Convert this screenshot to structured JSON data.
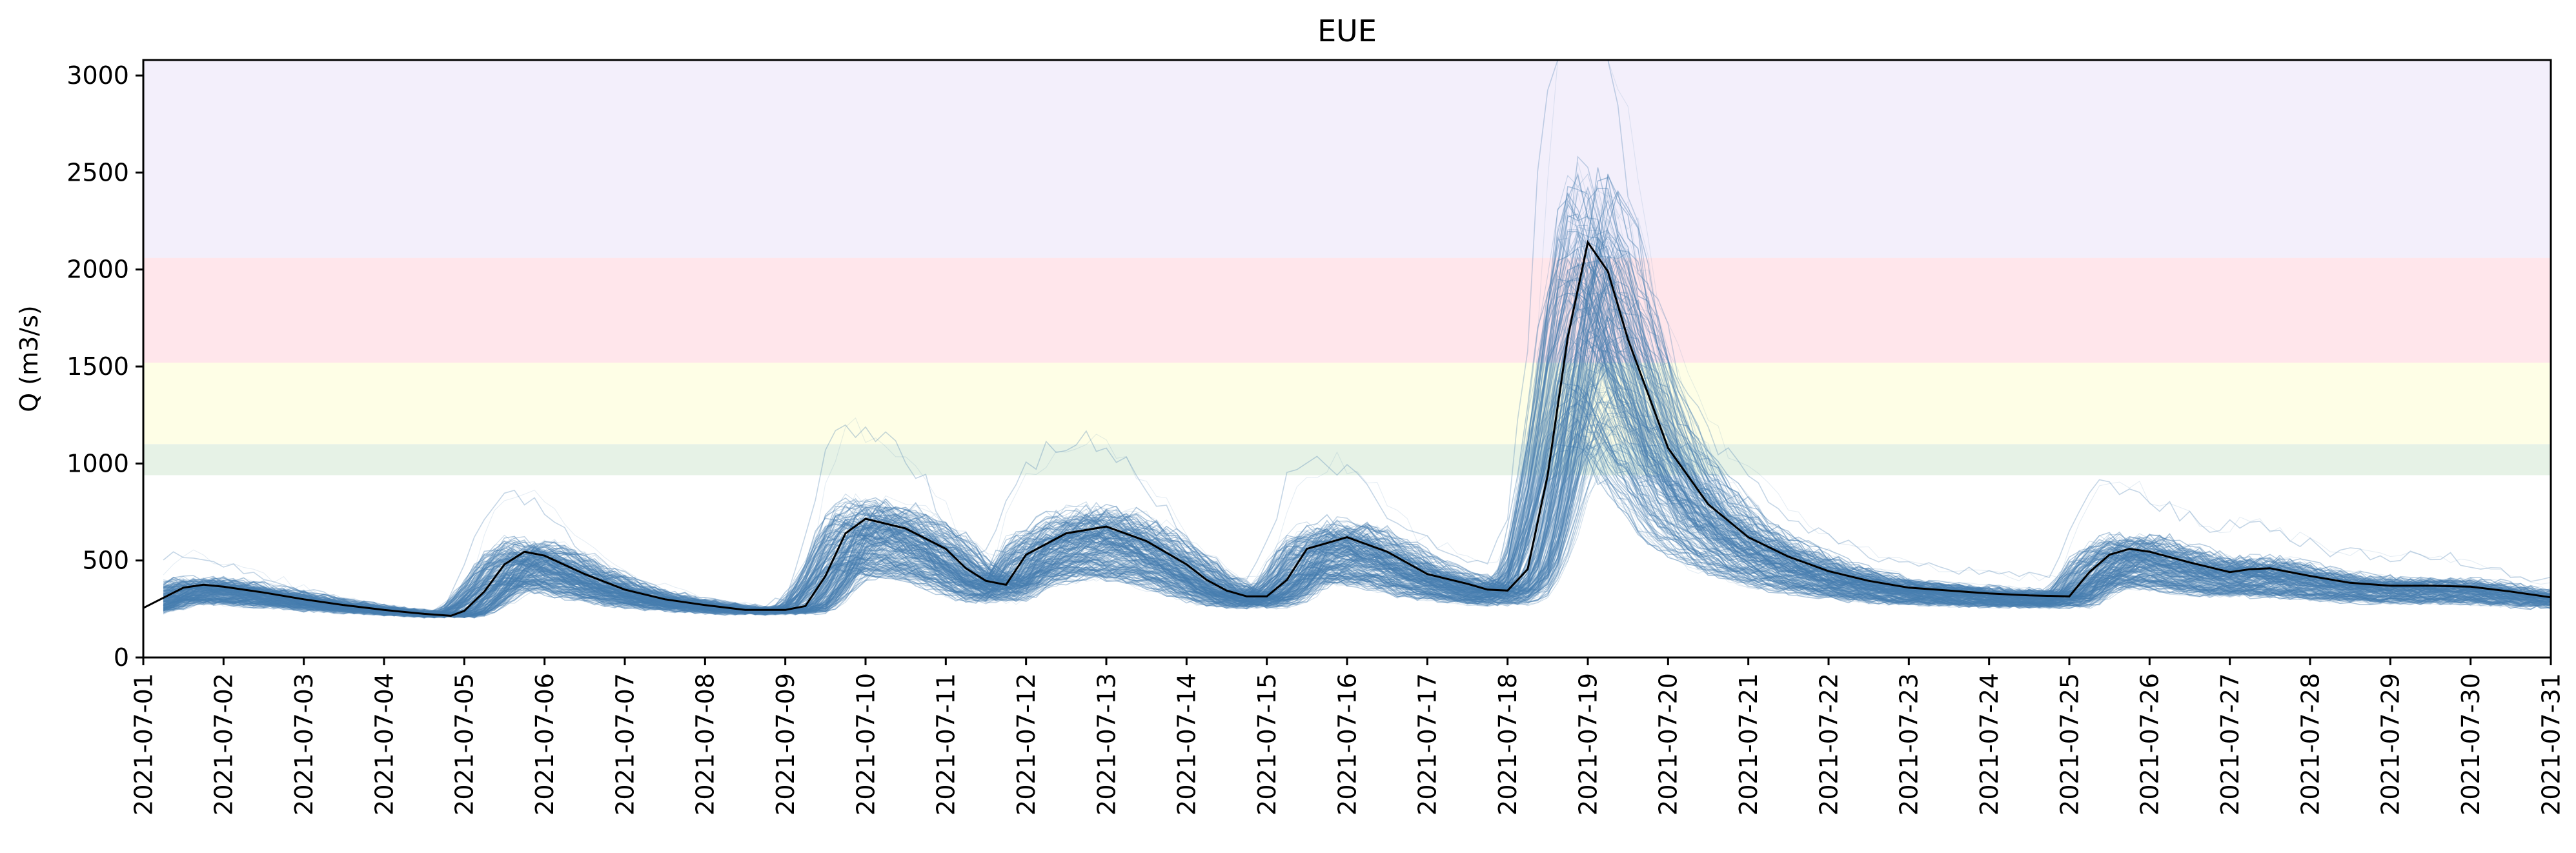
{
  "chart_data": {
    "type": "line",
    "title": "EUE",
    "xlabel": "",
    "ylabel": "Q (m3/s)",
    "xlim": [
      "2021-07-01",
      "2021-07-31"
    ],
    "ylim": [
      0,
      3080
    ],
    "grid": false,
    "legend": "none",
    "x_tick_labels": [
      "2021-07-01",
      "2021-07-02",
      "2021-07-03",
      "2021-07-04",
      "2021-07-05",
      "2021-07-06",
      "2021-07-07",
      "2021-07-08",
      "2021-07-09",
      "2021-07-10",
      "2021-07-11",
      "2021-07-12",
      "2021-07-13",
      "2021-07-14",
      "2021-07-15",
      "2021-07-16",
      "2021-07-17",
      "2021-07-18",
      "2021-07-19",
      "2021-07-20",
      "2021-07-21",
      "2021-07-22",
      "2021-07-23",
      "2021-07-24",
      "2021-07-25",
      "2021-07-26",
      "2021-07-27",
      "2021-07-28",
      "2021-07-29",
      "2021-07-30",
      "2021-07-31"
    ],
    "y_ticks": [
      0,
      500,
      1000,
      1500,
      2000,
      2500,
      3000
    ],
    "y_tick_labels": [
      "0",
      "500",
      "1000",
      "1500",
      "2000",
      "2500",
      "3000"
    ],
    "threshold_bands": [
      {
        "from": 940,
        "to": 1100,
        "color": "#e6f2e6"
      },
      {
        "from": 1100,
        "to": 1520,
        "color": "#fefee6"
      },
      {
        "from": 1520,
        "to": 2060,
        "color": "#ffe6eb"
      },
      {
        "from": 2060,
        "to": 3080,
        "color": "#f3effb"
      }
    ],
    "colors": {
      "observed": "#000000",
      "ensemble": "#4a7fb0"
    },
    "observed": {
      "x": [
        "2021-07-01 00:00",
        "2021-07-01 12:00",
        "2021-07-01 18:00",
        "2021-07-02 00:00",
        "2021-07-02 12:00",
        "2021-07-03 00:00",
        "2021-07-03 12:00",
        "2021-07-04 00:00",
        "2021-07-04 12:00",
        "2021-07-04 20:00",
        "2021-07-05 00:00",
        "2021-07-05 06:00",
        "2021-07-05 12:00",
        "2021-07-05 18:00",
        "2021-07-06 00:00",
        "2021-07-06 12:00",
        "2021-07-07 00:00",
        "2021-07-07 12:00",
        "2021-07-08 00:00",
        "2021-07-08 12:00",
        "2021-07-09 00:00",
        "2021-07-09 06:00",
        "2021-07-09 12:00",
        "2021-07-09 18:00",
        "2021-07-10 00:00",
        "2021-07-10 12:00",
        "2021-07-11 00:00",
        "2021-07-11 06:00",
        "2021-07-11 12:00",
        "2021-07-11 18:00",
        "2021-07-12 00:00",
        "2021-07-12 12:00",
        "2021-07-13 00:00",
        "2021-07-13 12:00",
        "2021-07-14 00:00",
        "2021-07-14 06:00",
        "2021-07-14 12:00",
        "2021-07-14 18:00",
        "2021-07-15 00:00",
        "2021-07-15 06:00",
        "2021-07-15 12:00",
        "2021-07-16 00:00",
        "2021-07-16 12:00",
        "2021-07-17 00:00",
        "2021-07-17 12:00",
        "2021-07-17 18:00",
        "2021-07-18 00:00",
        "2021-07-18 06:00",
        "2021-07-18 12:00",
        "2021-07-18 18:00",
        "2021-07-19 00:00",
        "2021-07-19 06:00",
        "2021-07-19 12:00",
        "2021-07-20 00:00",
        "2021-07-20 12:00",
        "2021-07-21 00:00",
        "2021-07-21 12:00",
        "2021-07-22 00:00",
        "2021-07-22 12:00",
        "2021-07-23 00:00",
        "2021-07-23 12:00",
        "2021-07-24 00:00",
        "2021-07-24 12:00",
        "2021-07-25 00:00",
        "2021-07-25 06:00",
        "2021-07-25 12:00",
        "2021-07-25 18:00",
        "2021-07-26 00:00",
        "2021-07-26 12:00",
        "2021-07-27 00:00",
        "2021-07-27 06:00",
        "2021-07-27 12:00",
        "2021-07-28 00:00",
        "2021-07-28 12:00",
        "2021-07-29 00:00",
        "2021-07-29 12:00",
        "2021-07-30 00:00",
        "2021-07-30 12:00",
        "2021-07-31 00:00"
      ],
      "y": [
        255,
        360,
        375,
        365,
        335,
        300,
        270,
        245,
        225,
        215,
        240,
        340,
        480,
        545,
        525,
        430,
        350,
        300,
        270,
        245,
        245,
        265,
        420,
        640,
        715,
        665,
        560,
        460,
        395,
        375,
        530,
        640,
        675,
        600,
        480,
        400,
        345,
        315,
        315,
        400,
        560,
        620,
        545,
        430,
        380,
        350,
        345,
        455,
        940,
        1650,
        2140,
        1990,
        1640,
        1080,
        790,
        620,
        520,
        445,
        395,
        360,
        345,
        330,
        320,
        315,
        440,
        530,
        560,
        545,
        490,
        440,
        455,
        460,
        420,
        385,
        370,
        370,
        365,
        340,
        310
      ]
    },
    "ensemble_members_drawn": 400
  }
}
